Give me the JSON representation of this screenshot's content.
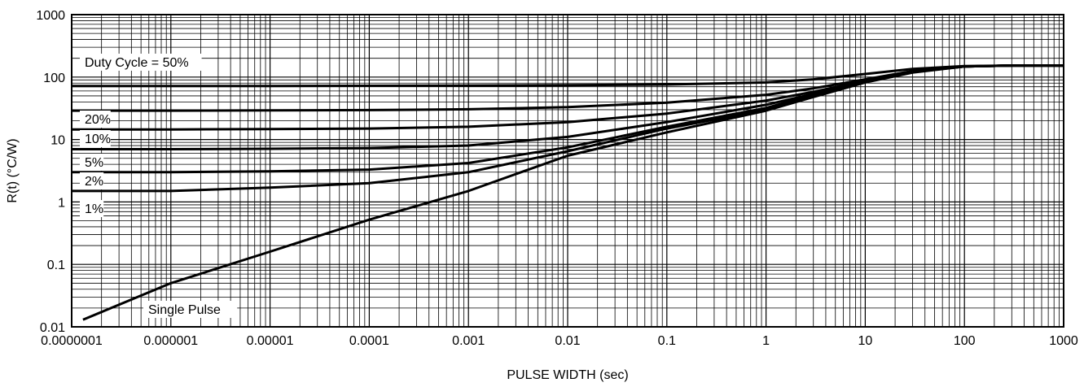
{
  "chart_data": {
    "type": "line",
    "xlabel": "PULSE WIDTH (sec)",
    "ylabel": "R(t) (°C/W)",
    "x_scale": "log",
    "y_scale": "log",
    "xlim": [
      1e-07,
      1000
    ],
    "ylim": [
      0.01,
      1000
    ],
    "grid": true,
    "x_tick_labels": [
      "0.0000001",
      "0.000001",
      "0.00001",
      "0.0001",
      "0.001",
      "0.01",
      "0.1",
      "1",
      "10",
      "100",
      "1000"
    ],
    "y_tick_labels": [
      "0.01",
      "0.1",
      "1",
      "10",
      "100",
      "1000"
    ],
    "line_color": "#000000",
    "series": [
      {
        "name": "Duty Cycle = 50%",
        "x": [
          1e-07,
          1e-06,
          1e-05,
          0.0001,
          0.001,
          0.01,
          0.1,
          1,
          3,
          10,
          30,
          100,
          300,
          1000
        ],
        "y": [
          72,
          72,
          72,
          72.5,
          73,
          74,
          76,
          82,
          92,
          112,
          135,
          150,
          153,
          153
        ]
      },
      {
        "name": "20%",
        "x": [
          1e-07,
          1e-06,
          1e-05,
          0.0001,
          0.001,
          0.01,
          0.1,
          1,
          3,
          10,
          30,
          100,
          300,
          1000
        ],
        "y": [
          29,
          29,
          29.3,
          29.6,
          30.5,
          33,
          39,
          52,
          66,
          92,
          125,
          148,
          153,
          153
        ]
      },
      {
        "name": "10%",
        "x": [
          1e-07,
          1e-06,
          1e-05,
          0.0001,
          0.001,
          0.01,
          0.1,
          1,
          3,
          10,
          30,
          100,
          300,
          1000
        ],
        "y": [
          14.5,
          14.5,
          14.7,
          15,
          16,
          19,
          26,
          42,
          58,
          88,
          123,
          148,
          153,
          153
        ]
      },
      {
        "name": "5%",
        "x": [
          1e-07,
          1e-06,
          1e-05,
          0.0001,
          0.001,
          0.01,
          0.1,
          1,
          3,
          10,
          30,
          100,
          300,
          1000
        ],
        "y": [
          7,
          7,
          7.1,
          7.3,
          8,
          11,
          19,
          36,
          54,
          86,
          122,
          148,
          153,
          153
        ]
      },
      {
        "name": "2%",
        "x": [
          1e-07,
          1e-06,
          1e-05,
          0.0001,
          0.001,
          0.01,
          0.1,
          1,
          3,
          10,
          30,
          100,
          300,
          1000
        ],
        "y": [
          3,
          3,
          3.1,
          3.3,
          4.2,
          7.5,
          16,
          32,
          52,
          84,
          121,
          148,
          153,
          153
        ]
      },
      {
        "name": "1%",
        "x": [
          1e-07,
          1e-06,
          1e-05,
          0.0001,
          0.001,
          0.01,
          0.1,
          1,
          3,
          10,
          30,
          100,
          300,
          1000
        ],
        "y": [
          1.5,
          1.5,
          1.7,
          2,
          3,
          6.5,
          15,
          30,
          50,
          83,
          120,
          148,
          153,
          153
        ]
      },
      {
        "name": "Single Pulse",
        "x": [
          1.3e-07,
          1e-06,
          1e-05,
          0.0001,
          0.001,
          0.003,
          0.01,
          0.1,
          1,
          3,
          10,
          30,
          100,
          300,
          1000
        ],
        "y": [
          0.013,
          0.05,
          0.16,
          0.52,
          1.5,
          2.8,
          5.5,
          13,
          29,
          48,
          82,
          118,
          148,
          153,
          153
        ]
      }
    ],
    "curve_labels": [
      "Duty Cycle = 50%",
      "20%",
      "10%",
      "5%",
      "2%",
      "1%",
      "Single Pulse"
    ]
  }
}
